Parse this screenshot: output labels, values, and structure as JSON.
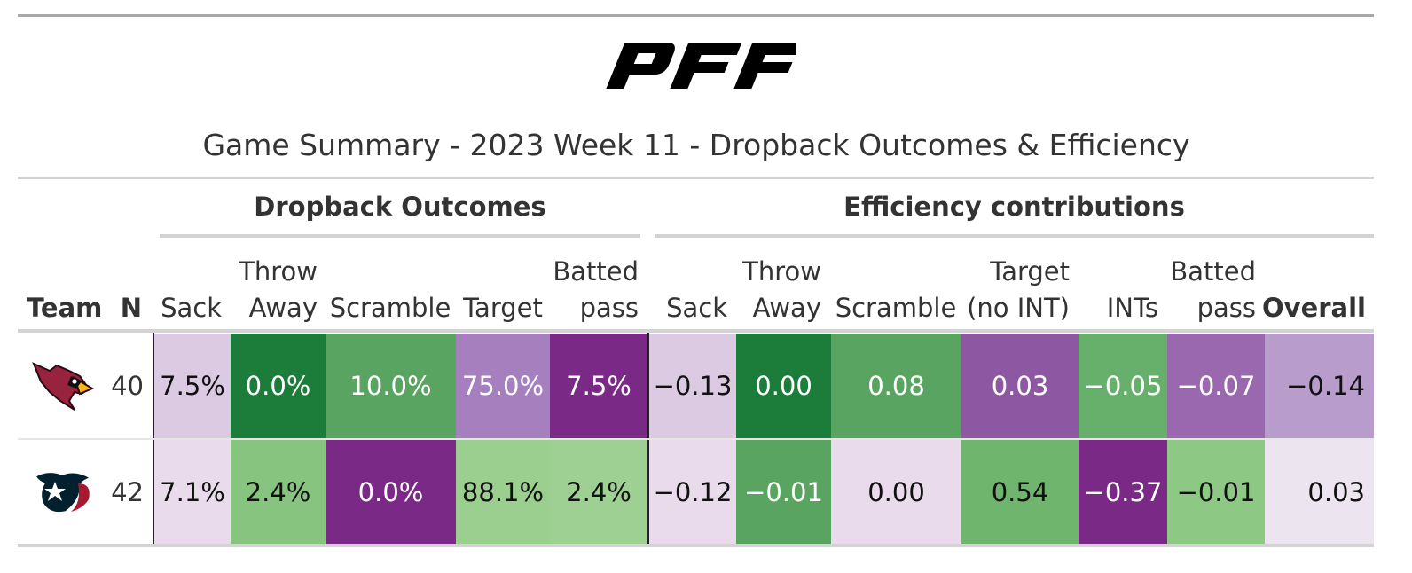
{
  "title": "Game Summary - 2023 Week 11 - Dropback Outcomes & Efficiency",
  "logo_text": "PFF",
  "spanners": {
    "dropback": "Dropback Outcomes",
    "efficiency": "Efficiency contributions"
  },
  "columns": {
    "team": "Team",
    "n": "N",
    "sack": "Sack",
    "throw_away_1": "Throw",
    "throw_away_2": "Away",
    "scramble": "Scramble",
    "target": "Target",
    "batted_1": "Batted",
    "batted_2": "pass",
    "eff_sack": "Sack",
    "eff_throw_1": "Throw",
    "eff_throw_2": "Away",
    "eff_scramble": "Scramble",
    "eff_target_1": "Target",
    "eff_target_2": "(no INT)",
    "eff_ints": "INTs",
    "eff_batted_1": "Batted",
    "eff_batted_2": "pass",
    "eff_overall": "Overall"
  },
  "chart_data": {
    "type": "table",
    "title": "Game Summary - 2023 Week 11 - Dropback Outcomes & Efficiency",
    "rows": [
      {
        "team_logo": "arizona-cardinals-logo",
        "n": "40",
        "sack": "7.5%",
        "throw_away": "0.0%",
        "scramble": "10.0%",
        "target": "75.0%",
        "batted_pass": "7.5%",
        "eff_sack": "−0.13",
        "eff_throw_away": "0.00",
        "eff_scramble": "0.08",
        "eff_target_no_int": "0.03",
        "eff_ints": "−0.05",
        "eff_batted_pass": "−0.07",
        "eff_overall": "−0.14",
        "colors": {
          "sack": "#dccae3",
          "throw_away": "#1c7c3a",
          "scramble": "#58a460",
          "target": "#a67fbe",
          "batted_pass": "#7a2a86",
          "eff_sack": "#dccae3",
          "eff_throw_away": "#1c7c3a",
          "eff_scramble": "#58a460",
          "eff_target_no_int": "#8d57a1",
          "eff_ints": "#67b06b",
          "eff_batted_pass": "#9a68ae",
          "eff_overall": "#b89ccb"
        }
      },
      {
        "team_logo": "houston-texans-logo",
        "n": "42",
        "sack": "7.1%",
        "throw_away": "2.4%",
        "scramble": "0.0%",
        "target": "88.1%",
        "batted_pass": "2.4%",
        "eff_sack": "−0.12",
        "eff_throw_away": "−0.01",
        "eff_scramble": "0.00",
        "eff_target_no_int": "0.54",
        "eff_ints": "−0.37",
        "eff_batted_pass": "−0.01",
        "eff_overall": "0.03",
        "colors": {
          "sack": "#eadbec",
          "throw_away": "#86c47f",
          "scramble": "#7a2a86",
          "target": "#9bcf90",
          "batted_pass": "#9ed093",
          "eff_sack": "#eadbec",
          "eff_throw_away": "#58a460",
          "eff_scramble": "#eadbec",
          "eff_target_no_int": "#70b56e",
          "eff_ints": "#7a2a86",
          "eff_batted_pass": "#8dc884",
          "eff_overall": "#ece4ef"
        }
      }
    ]
  }
}
